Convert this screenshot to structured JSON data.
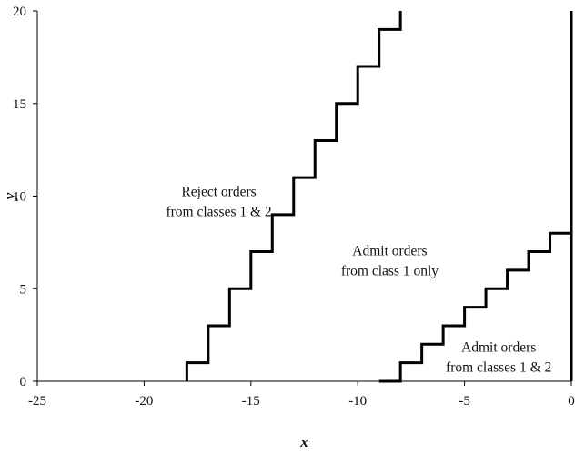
{
  "chart_data": {
    "type": "line",
    "xlabel": "x",
    "ylabel": "y",
    "xlim": [
      -25,
      0
    ],
    "ylim": [
      0,
      20
    ],
    "x_ticks": [
      "-25",
      "-20",
      "-15",
      "-10",
      "-5",
      "0"
    ],
    "y_ticks": [
      "0",
      "5",
      "10",
      "15",
      "20"
    ],
    "grid": false,
    "legend": "none",
    "series": [
      {
        "points": [
          [
            -18,
            0
          ],
          [
            -18,
            1
          ],
          [
            -17,
            1
          ],
          [
            -17,
            3
          ],
          [
            -16,
            3
          ],
          [
            -16,
            5
          ],
          [
            -15,
            5
          ],
          [
            -15,
            7
          ],
          [
            -14,
            7
          ],
          [
            -14,
            9
          ],
          [
            -13,
            9
          ],
          [
            -13,
            11
          ],
          [
            -12,
            11
          ],
          [
            -12,
            13
          ],
          [
            -11,
            13
          ],
          [
            -11,
            15
          ],
          [
            -10,
            15
          ],
          [
            -10,
            17
          ],
          [
            -9,
            17
          ],
          [
            -9,
            19
          ],
          [
            -8,
            19
          ],
          [
            -8,
            20
          ]
        ]
      },
      {
        "points": [
          [
            -9,
            0
          ],
          [
            -8,
            0
          ],
          [
            -8,
            1
          ],
          [
            -7,
            1
          ],
          [
            -7,
            2
          ],
          [
            -6,
            2
          ],
          [
            -6,
            3
          ],
          [
            -5,
            3
          ],
          [
            -5,
            4
          ],
          [
            -4,
            4
          ],
          [
            -4,
            5
          ],
          [
            -3,
            5
          ],
          [
            -3,
            6
          ],
          [
            -2,
            6
          ],
          [
            -2,
            7
          ],
          [
            -1,
            7
          ],
          [
            -1,
            8
          ],
          [
            0,
            8
          ]
        ]
      }
    ],
    "annotations": [
      {
        "lines": [
          "Reject orders",
          "from classes 1 & 2"
        ],
        "x": -16.5,
        "y": 10
      },
      {
        "lines": [
          "Admit orders",
          "from class 1 only"
        ],
        "x": -8.5,
        "y": 6.8
      },
      {
        "lines": [
          "Admit orders",
          "from classes 1 & 2"
        ],
        "x": -3.4,
        "y": 1.6
      }
    ],
    "colors": {
      "line": "#000000",
      "axis": "#000000",
      "background": "#ffffff"
    }
  }
}
